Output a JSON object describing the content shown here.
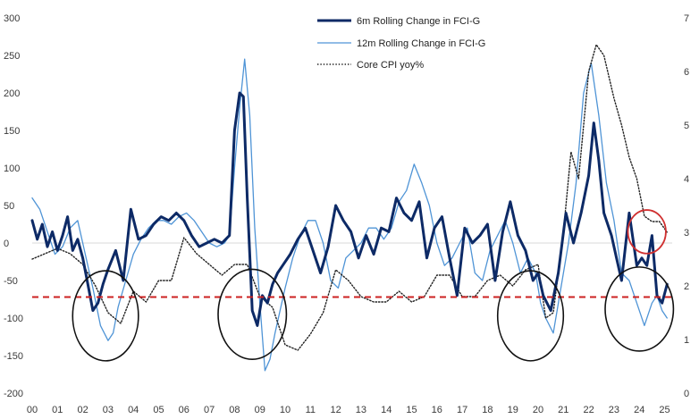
{
  "chart_data": {
    "type": "line",
    "title": "",
    "x_tick_labels": [
      "00",
      "01",
      "02",
      "03",
      "04",
      "05",
      "06",
      "07",
      "08",
      "09",
      "10",
      "11",
      "12",
      "13",
      "14",
      "15",
      "16",
      "17",
      "18",
      "19",
      "20",
      "21",
      "22",
      "23",
      "24",
      "25"
    ],
    "x_range": [
      2000,
      2025.3
    ],
    "y_left": {
      "range": [
        -200,
        300
      ],
      "ticks": [
        300,
        250,
        200,
        150,
        100,
        50,
        0,
        -50,
        -100,
        -150,
        -200
      ]
    },
    "y_right": {
      "range": [
        0,
        7
      ],
      "ticks": [
        7,
        6,
        5,
        4,
        3,
        2,
        1,
        0
      ]
    },
    "reference_line": {
      "axis": "left",
      "value": -72,
      "color": "#cc2222",
      "style": "dashed"
    },
    "colors": {
      "six_month": "#0d2a66",
      "twelve_month": "#4f94d6",
      "core_cpi": "#222222",
      "circle_black": "#111111",
      "circle_red": "#d03030",
      "zero_line": "#d9d9d9"
    },
    "series": [
      {
        "name": "6m Rolling Change in FCI-G",
        "axis": "left",
        "style": "thick-solid",
        "x": [
          2000.0,
          2000.2,
          2000.4,
          2000.6,
          2000.8,
          2001.0,
          2001.2,
          2001.4,
          2001.6,
          2001.8,
          2002.0,
          2002.2,
          2002.4,
          2002.6,
          2002.8,
          2003.0,
          2003.3,
          2003.6,
          2003.9,
          2004.2,
          2004.5,
          2004.8,
          2005.1,
          2005.4,
          2005.7,
          2006.0,
          2006.3,
          2006.6,
          2006.9,
          2007.2,
          2007.5,
          2007.8,
          2008.0,
          2008.2,
          2008.35,
          2008.5,
          2008.7,
          2008.9,
          2009.1,
          2009.3,
          2009.5,
          2009.7,
          2009.9,
          2010.2,
          2010.5,
          2010.8,
          2011.1,
          2011.4,
          2011.7,
          2012.0,
          2012.3,
          2012.6,
          2012.9,
          2013.2,
          2013.5,
          2013.8,
          2014.1,
          2014.4,
          2014.7,
          2015.0,
          2015.3,
          2015.6,
          2015.9,
          2016.2,
          2016.5,
          2016.8,
          2017.1,
          2017.4,
          2017.7,
          2018.0,
          2018.3,
          2018.6,
          2018.9,
          2019.2,
          2019.5,
          2019.8,
          2020.0,
          2020.2,
          2020.5,
          2020.8,
          2021.1,
          2021.4,
          2021.7,
          2022.0,
          2022.2,
          2022.4,
          2022.6,
          2022.9,
          2023.1,
          2023.3,
          2023.6,
          2023.9,
          2024.1,
          2024.3,
          2024.5,
          2024.7,
          2024.9,
          2025.1
        ],
        "values": [
          30,
          5,
          25,
          -5,
          15,
          -10,
          10,
          35,
          -10,
          5,
          -20,
          -55,
          -90,
          -80,
          -55,
          -35,
          -10,
          -50,
          45,
          5,
          10,
          25,
          35,
          30,
          40,
          30,
          10,
          -5,
          0,
          5,
          0,
          10,
          150,
          200,
          195,
          60,
          -90,
          -110,
          -70,
          -80,
          -55,
          -40,
          -30,
          -15,
          5,
          20,
          -10,
          -40,
          -5,
          50,
          30,
          15,
          -20,
          10,
          -15,
          20,
          15,
          60,
          40,
          30,
          55,
          -20,
          20,
          35,
          -20,
          -70,
          20,
          0,
          10,
          25,
          -50,
          15,
          55,
          10,
          -10,
          -50,
          -40,
          -70,
          -90,
          -40,
          40,
          0,
          40,
          90,
          160,
          110,
          40,
          10,
          -20,
          -50,
          40,
          -30,
          -20,
          -30,
          10,
          -70,
          -80,
          -55
        ]
      },
      {
        "name": "12m Rolling Change in FCI-G",
        "axis": "left",
        "style": "thin-solid",
        "x": [
          2000.0,
          2000.3,
          2000.6,
          2000.9,
          2001.2,
          2001.5,
          2001.8,
          2002.1,
          2002.4,
          2002.7,
          2003.0,
          2003.2,
          2003.4,
          2003.7,
          2004.0,
          2004.3,
          2004.6,
          2004.9,
          2005.2,
          2005.5,
          2005.8,
          2006.1,
          2006.4,
          2006.7,
          2007.0,
          2007.3,
          2007.6,
          2007.8,
          2008.0,
          2008.2,
          2008.4,
          2008.6,
          2008.8,
          2009.0,
          2009.2,
          2009.4,
          2009.6,
          2009.8,
          2010.0,
          2010.3,
          2010.6,
          2010.9,
          2011.2,
          2011.5,
          2011.8,
          2012.1,
          2012.4,
          2012.7,
          2013.0,
          2013.3,
          2013.6,
          2013.9,
          2014.2,
          2014.5,
          2014.8,
          2015.1,
          2015.4,
          2015.7,
          2016.0,
          2016.3,
          2016.6,
          2016.9,
          2017.2,
          2017.5,
          2017.8,
          2018.1,
          2018.4,
          2018.7,
          2019.0,
          2019.3,
          2019.6,
          2019.9,
          2020.1,
          2020.3,
          2020.6,
          2020.9,
          2021.2,
          2021.5,
          2021.8,
          2022.1,
          2022.4,
          2022.7,
          2023.0,
          2023.3,
          2023.6,
          2023.9,
          2024.2,
          2024.5,
          2024.7,
          2024.9,
          2025.1
        ],
        "values": [
          60,
          45,
          15,
          -15,
          -5,
          20,
          30,
          -15,
          -60,
          -110,
          -130,
          -120,
          -85,
          -50,
          -15,
          5,
          20,
          30,
          30,
          25,
          35,
          40,
          30,
          15,
          0,
          -5,
          0,
          10,
          100,
          180,
          245,
          170,
          20,
          -80,
          -170,
          -155,
          -120,
          -90,
          -60,
          -20,
          10,
          30,
          30,
          0,
          -50,
          -60,
          -20,
          -10,
          0,
          20,
          20,
          5,
          20,
          55,
          70,
          105,
          80,
          50,
          0,
          -30,
          -20,
          0,
          20,
          -40,
          -50,
          -10,
          10,
          30,
          0,
          -40,
          -20,
          -40,
          -80,
          -100,
          -120,
          -60,
          0,
          80,
          200,
          240,
          170,
          80,
          30,
          -40,
          -50,
          -80,
          -110,
          -80,
          -70,
          -90,
          -100
        ]
      },
      {
        "name": "Core CPI yoy%",
        "axis": "right",
        "style": "dotted",
        "x": [
          2000.0,
          2000.5,
          2001.0,
          2001.5,
          2002.0,
          2002.5,
          2003.0,
          2003.5,
          2004.0,
          2004.5,
          2005.0,
          2005.5,
          2006.0,
          2006.5,
          2007.0,
          2007.5,
          2008.0,
          2008.5,
          2009.0,
          2009.5,
          2010.0,
          2010.5,
          2011.0,
          2011.5,
          2012.0,
          2012.5,
          2013.0,
          2013.5,
          2014.0,
          2014.5,
          2015.0,
          2015.5,
          2016.0,
          2016.5,
          2017.0,
          2017.5,
          2018.0,
          2018.5,
          2019.0,
          2019.5,
          2020.0,
          2020.3,
          2020.6,
          2021.0,
          2021.3,
          2021.6,
          2022.0,
          2022.3,
          2022.6,
          2023.0,
          2023.3,
          2023.6,
          2023.9,
          2024.2,
          2024.5,
          2024.8,
          2025.1
        ],
        "values": [
          2.5,
          2.6,
          2.7,
          2.6,
          2.4,
          2.0,
          1.5,
          1.3,
          1.9,
          1.7,
          2.1,
          2.1,
          2.9,
          2.6,
          2.4,
          2.2,
          2.4,
          2.4,
          1.8,
          1.6,
          0.9,
          0.8,
          1.1,
          1.5,
          2.3,
          2.1,
          1.8,
          1.7,
          1.7,
          1.9,
          1.7,
          1.8,
          2.2,
          2.2,
          1.8,
          1.8,
          2.1,
          2.2,
          2.0,
          2.3,
          2.4,
          1.4,
          1.5,
          3.0,
          4.5,
          4.0,
          6.0,
          6.5,
          6.3,
          5.5,
          5.0,
          4.4,
          4.0,
          3.3,
          3.2,
          3.2,
          3.0
        ]
      }
    ],
    "annotations": [
      {
        "shape": "circle",
        "color": "black",
        "x_center": 2002.9,
        "y_center": -97,
        "x_radius": 1.3,
        "y_radius": 60
      },
      {
        "shape": "circle",
        "color": "black",
        "x_center": 2008.7,
        "y_center": -95,
        "x_radius": 1.35,
        "y_radius": 60
      },
      {
        "shape": "circle",
        "color": "black",
        "x_center": 2019.7,
        "y_center": -97,
        "x_radius": 1.3,
        "y_radius": 60
      },
      {
        "shape": "circle",
        "color": "black",
        "x_center": 2024.0,
        "y_center": -88,
        "x_radius": 1.35,
        "y_radius": 56
      },
      {
        "shape": "circle",
        "color": "red",
        "x_center": 2024.3,
        "y_center": 15,
        "x_radius": 0.75,
        "y_radius": 29
      }
    ],
    "legend": {
      "position": "top-center",
      "entries": [
        "6m Rolling Change in FCI-G",
        "12m Rolling Change in FCI-G",
        "Core CPI yoy%"
      ]
    }
  }
}
